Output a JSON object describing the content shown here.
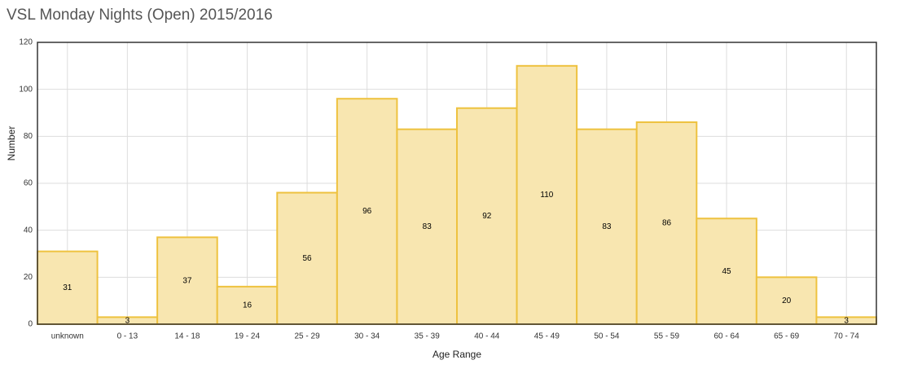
{
  "chart_data": {
    "type": "bar",
    "title": "VSL Monday Nights (Open) 2015/2016",
    "x_label": "Age Range",
    "y_label": "Number",
    "categories": [
      "unknown",
      "0 - 13",
      "14 - 18",
      "19 - 24",
      "25 - 29",
      "30 - 34",
      "35 - 39",
      "40 - 44",
      "45 - 49",
      "50 - 54",
      "55 - 59",
      "60 - 64",
      "65 - 69",
      "70 - 74"
    ],
    "values": [
      31,
      3,
      37,
      16,
      56,
      96,
      83,
      92,
      110,
      83,
      86,
      45,
      20,
      3
    ],
    "color": "#f8e6b0",
    "edge_color": "#eec23f",
    "ylim": [
      0,
      120
    ],
    "yticks": [
      0,
      20,
      40,
      60,
      80,
      100,
      120
    ],
    "grid": true
  }
}
